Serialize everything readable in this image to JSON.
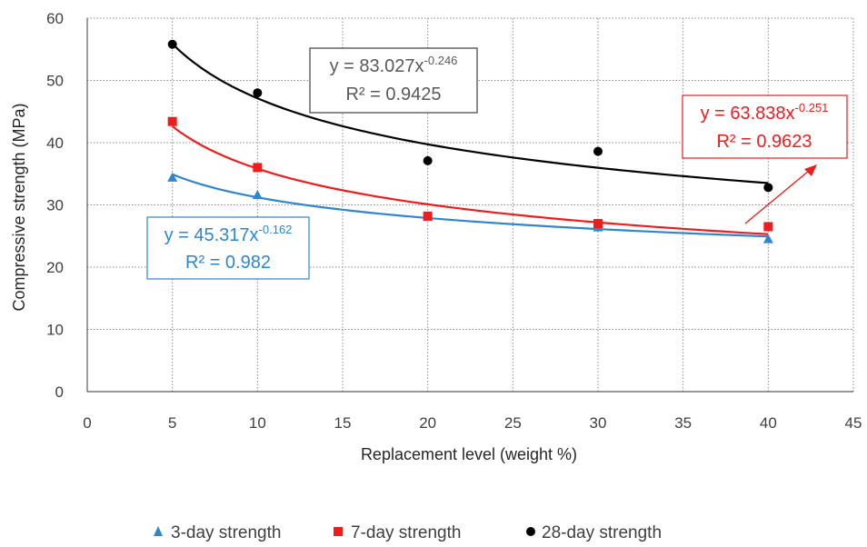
{
  "chart_data": {
    "type": "scatter",
    "xlabel": "Replacement level (weight %)",
    "ylabel": "Compressive strength (MPa)",
    "xlim": [
      0,
      45
    ],
    "ylim": [
      0,
      60
    ],
    "xticks": [
      0,
      5,
      10,
      15,
      20,
      25,
      30,
      35,
      40,
      45
    ],
    "yticks": [
      0,
      10,
      20,
      30,
      40,
      50,
      60
    ],
    "grid": "dotted",
    "legend_position": "bottom",
    "x": [
      5,
      10,
      20,
      30,
      40
    ],
    "series": [
      {
        "name": "3-day strength",
        "marker": "triangle",
        "color": "#2E86D1",
        "values": [
          34.4,
          31.6,
          28.1,
          26.4,
          24.5
        ],
        "trendline": {
          "type": "power",
          "coef": 45.317,
          "exp": -0.162,
          "equation_base": "y = 45.317x",
          "equation_exp": "-0.162",
          "r2": "R² = 0.982"
        }
      },
      {
        "name": "7-day strength",
        "marker": "square",
        "color": "#EE1C1C",
        "values": [
          43.4,
          36.0,
          28.2,
          27.0,
          26.5
        ],
        "trendline": {
          "type": "power",
          "coef": 63.838,
          "exp": -0.251,
          "equation_base": "y = 63.838x",
          "equation_exp": "-0.251",
          "r2": "R² = 0.9623"
        }
      },
      {
        "name": "28-day strength",
        "marker": "circle",
        "color": "#000000",
        "values": [
          55.8,
          48.0,
          37.1,
          38.6,
          32.8
        ],
        "trendline": {
          "type": "power",
          "coef": 83.027,
          "exp": -0.246,
          "equation_base": "y = 83.027x",
          "equation_exp": "-0.246",
          "r2": "R² = 0.9425"
        }
      }
    ]
  },
  "colors": {
    "grid": "#8c8c8c",
    "axis": "#595959",
    "eq_28_text": "#595959",
    "eq_28_border": "#404040"
  }
}
